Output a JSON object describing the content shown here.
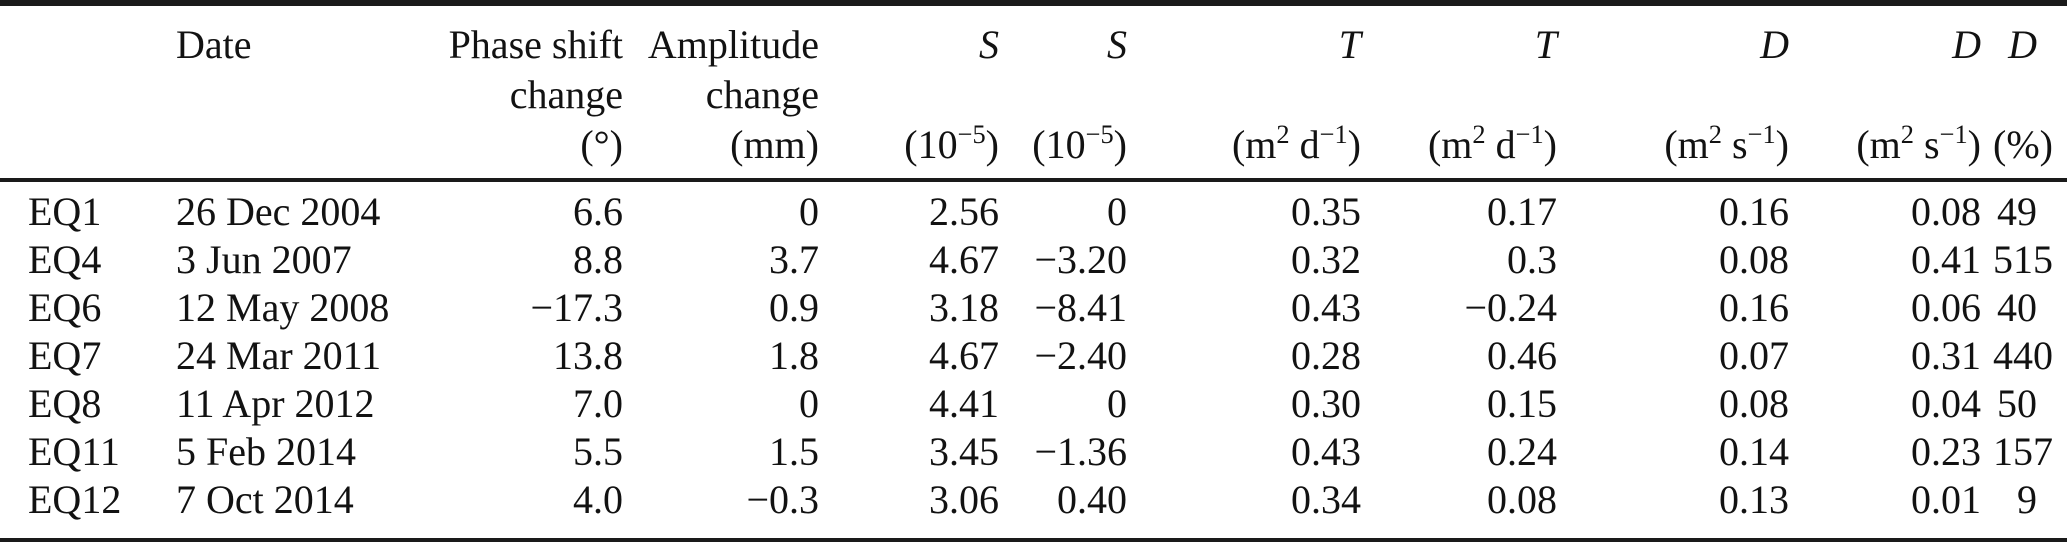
{
  "colors": {
    "background": "#ffffff",
    "text": "#121212",
    "rule": "#1a1a1a"
  },
  "table": {
    "columns": [
      {
        "label": ""
      },
      {
        "label": "Date"
      },
      {
        "label": "Phase shift",
        "label2": "change",
        "unit": "(°)"
      },
      {
        "label": "Amplitude",
        "label2": "change",
        "unit": "(mm)"
      },
      {
        "label": "S",
        "unit": "(10^{−5})"
      },
      {
        "label": "S",
        "unit": "(10^{−5})"
      },
      {
        "label": "T",
        "unit": "(m^{2} d^{−1})"
      },
      {
        "label": "T",
        "unit": "(m^{2} d^{−1})"
      },
      {
        "label": "D",
        "unit": "(m^{2} s^{−1})"
      },
      {
        "label": "D",
        "unit": "(m^{2} s^{−1})"
      },
      {
        "label": "D",
        "unit": "(%)"
      }
    ],
    "rows": [
      {
        "id": "EQ1",
        "date": "26 Dec 2004",
        "values": [
          "6.6",
          "0",
          "2.56",
          "0",
          "0.35",
          "0.17",
          "0.16",
          "0.08",
          "49"
        ]
      },
      {
        "id": "EQ4",
        "date": "3 Jun 2007",
        "values": [
          "8.8",
          "3.7",
          "4.67",
          "−3.20",
          "0.32",
          "0.3",
          "0.08",
          "0.41",
          "515"
        ]
      },
      {
        "id": "EQ6",
        "date": "12 May 2008",
        "values": [
          "−17.3",
          "0.9",
          "3.18",
          "−8.41",
          "0.43",
          "−0.24",
          "0.16",
          "0.06",
          "40"
        ]
      },
      {
        "id": "EQ7",
        "date": "24 Mar 2011",
        "values": [
          "13.8",
          "1.8",
          "4.67",
          "−2.40",
          "0.28",
          "0.46",
          "0.07",
          "0.31",
          "440"
        ]
      },
      {
        "id": "EQ8",
        "date": "11 Apr 2012",
        "values": [
          "7.0",
          "0",
          "4.41",
          "0",
          "0.30",
          "0.15",
          "0.08",
          "0.04",
          "50"
        ]
      },
      {
        "id": "EQ11",
        "date": "5 Feb 2014",
        "values": [
          "5.5",
          "1.5",
          "3.45",
          "−1.36",
          "0.43",
          "0.24",
          "0.14",
          "0.23",
          "157"
        ]
      },
      {
        "id": "EQ12",
        "date": "7 Oct 2014",
        "values": [
          "4.0",
          "−0.3",
          "3.06",
          "0.40",
          "0.34",
          "0.08",
          "0.13",
          "0.01",
          "9"
        ]
      }
    ]
  }
}
